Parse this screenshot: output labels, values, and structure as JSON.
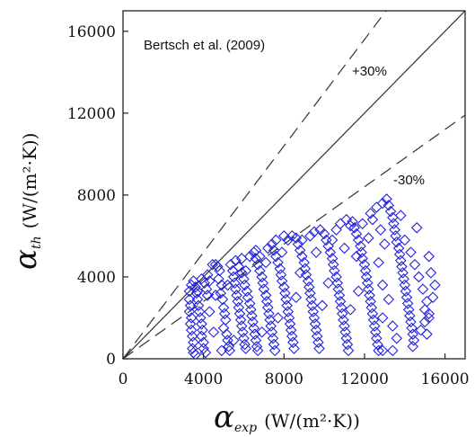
{
  "chart_data": {
    "type": "scatter",
    "title": "",
    "annotation": "Bertsch et al. (2009)",
    "xlabel": {
      "symbol": "α",
      "subscript": "exp",
      "unit": "(W/(m²·K))"
    },
    "ylabel": {
      "symbol": "α",
      "subscript": "th",
      "unit": "(W/(m²·K))"
    },
    "xlim": [
      0,
      17000
    ],
    "ylim": [
      0,
      17000
    ],
    "xticks": [
      0,
      4000,
      8000,
      12000,
      16000
    ],
    "yticks": [
      0,
      4000,
      8000,
      12000,
      16000
    ],
    "xtick_labels": [
      "0",
      "4000",
      "8000",
      "12000",
      "16000"
    ],
    "ytick_labels": [
      "0",
      "4000",
      "8000",
      "12000",
      "16000"
    ],
    "grid": false,
    "reference_lines": [
      {
        "label": "",
        "slope": 1.0,
        "style": "solid"
      },
      {
        "label": "+30%",
        "slope": 1.3,
        "style": "dashed"
      },
      {
        "label": "-30%",
        "slope": 0.7,
        "style": "dashed"
      }
    ],
    "marker": "diamond-open",
    "marker_color": "#2222dd",
    "series": [
      {
        "points": [
          [
            3300,
            3300
          ],
          [
            3300,
            2900
          ],
          [
            3350,
            2600
          ],
          [
            3300,
            2300
          ],
          [
            3400,
            2000
          ],
          [
            3350,
            1700
          ],
          [
            3400,
            1400
          ],
          [
            3450,
            1100
          ],
          [
            3500,
            800
          ],
          [
            3450,
            500
          ],
          [
            3500,
            300
          ],
          [
            3600,
            200
          ],
          [
            3400,
            3600
          ],
          [
            3500,
            3800
          ],
          [
            3600,
            3500
          ],
          [
            3650,
            3200
          ],
          [
            3700,
            2900
          ],
          [
            3750,
            2600
          ],
          [
            3800,
            2300
          ],
          [
            3850,
            2000
          ],
          [
            3900,
            1700
          ],
          [
            3950,
            1400
          ],
          [
            3900,
            1100
          ],
          [
            4000,
            800
          ],
          [
            4000,
            500
          ],
          [
            4100,
            300
          ],
          [
            4050,
            3700
          ],
          [
            4150,
            3400
          ],
          [
            4200,
            3100
          ],
          [
            4300,
            3800
          ],
          [
            4450,
            4600
          ],
          [
            4600,
            4600
          ],
          [
            4700,
            4500
          ],
          [
            4800,
            4300
          ],
          [
            4750,
            3900
          ],
          [
            4900,
            3600
          ],
          [
            4850,
            3200
          ],
          [
            4950,
            2900
          ],
          [
            5000,
            2500
          ],
          [
            5050,
            2200
          ],
          [
            5100,
            1900
          ],
          [
            5000,
            1500
          ],
          [
            5150,
            1200
          ],
          [
            5200,
            900
          ],
          [
            5250,
            600
          ],
          [
            5300,
            400
          ],
          [
            5350,
            4600
          ],
          [
            5450,
            4300
          ],
          [
            5500,
            4000
          ],
          [
            5550,
            3700
          ],
          [
            5600,
            3400
          ],
          [
            5650,
            3100
          ],
          [
            5700,
            2800
          ],
          [
            5750,
            2500
          ],
          [
            5800,
            2200
          ],
          [
            5850,
            1900
          ],
          [
            5900,
            1600
          ],
          [
            5950,
            1300
          ],
          [
            6000,
            1000
          ],
          [
            6050,
            700
          ],
          [
            6100,
            500
          ],
          [
            5600,
            4800
          ],
          [
            5750,
            4500
          ],
          [
            5900,
            4200
          ],
          [
            6000,
            3900
          ],
          [
            6050,
            3600
          ],
          [
            6150,
            3300
          ],
          [
            6200,
            3000
          ],
          [
            6300,
            2700
          ],
          [
            6350,
            2400
          ],
          [
            6400,
            2100
          ],
          [
            6450,
            1800
          ],
          [
            6500,
            1500
          ],
          [
            6550,
            1200
          ],
          [
            6600,
            900
          ],
          [
            6650,
            600
          ],
          [
            6700,
            400
          ],
          [
            6300,
            5000
          ],
          [
            6500,
            5200
          ],
          [
            6600,
            4900
          ],
          [
            6700,
            4600
          ],
          [
            6800,
            4300
          ],
          [
            6900,
            4000
          ],
          [
            6950,
            3700
          ],
          [
            7000,
            3400
          ],
          [
            7100,
            3100
          ],
          [
            7150,
            2800
          ],
          [
            7200,
            2500
          ],
          [
            7250,
            2200
          ],
          [
            7300,
            1900
          ],
          [
            7350,
            1600
          ],
          [
            7400,
            1300
          ],
          [
            7450,
            1000
          ],
          [
            7500,
            700
          ],
          [
            7550,
            400
          ],
          [
            7200,
            5400
          ],
          [
            7400,
            5600
          ],
          [
            7500,
            5300
          ],
          [
            7600,
            5000
          ],
          [
            7700,
            4700
          ],
          [
            7800,
            4400
          ],
          [
            7850,
            4100
          ],
          [
            7900,
            3800
          ],
          [
            8000,
            3500
          ],
          [
            8050,
            3200
          ],
          [
            8100,
            2900
          ],
          [
            8150,
            2600
          ],
          [
            8200,
            2300
          ],
          [
            8250,
            2000
          ],
          [
            8300,
            1700
          ],
          [
            8350,
            1400
          ],
          [
            8400,
            1100
          ],
          [
            8450,
            800
          ],
          [
            8500,
            500
          ],
          [
            8200,
            5800
          ],
          [
            8400,
            6000
          ],
          [
            8600,
            5900
          ],
          [
            8700,
            5600
          ],
          [
            8800,
            5300
          ],
          [
            8900,
            5000
          ],
          [
            9000,
            4700
          ],
          [
            9050,
            4400
          ],
          [
            9100,
            4100
          ],
          [
            9200,
            3800
          ],
          [
            9250,
            3500
          ],
          [
            9300,
            3200
          ],
          [
            9350,
            2900
          ],
          [
            9400,
            2600
          ],
          [
            9450,
            2300
          ],
          [
            9500,
            2000
          ],
          [
            9550,
            1700
          ],
          [
            9600,
            1400
          ],
          [
            9650,
            1100
          ],
          [
            9700,
            800
          ],
          [
            9750,
            500
          ],
          [
            9500,
            6200
          ],
          [
            9800,
            6300
          ],
          [
            10000,
            6100
          ],
          [
            10100,
            5800
          ],
          [
            10200,
            5500
          ],
          [
            10300,
            5200
          ],
          [
            10400,
            4900
          ],
          [
            10450,
            4600
          ],
          [
            10500,
            4300
          ],
          [
            10600,
            4000
          ],
          [
            10650,
            3700
          ],
          [
            10700,
            3400
          ],
          [
            10750,
            3100
          ],
          [
            10800,
            2800
          ],
          [
            10850,
            2500
          ],
          [
            10900,
            2200
          ],
          [
            10950,
            1900
          ],
          [
            11000,
            1600
          ],
          [
            11050,
            1300
          ],
          [
            11100,
            1000
          ],
          [
            11150,
            700
          ],
          [
            11200,
            400
          ],
          [
            10800,
            6600
          ],
          [
            11100,
            6800
          ],
          [
            11400,
            6700
          ],
          [
            11500,
            6400
          ],
          [
            11600,
            6100
          ],
          [
            11700,
            5800
          ],
          [
            11800,
            5500
          ],
          [
            11850,
            5200
          ],
          [
            11900,
            4900
          ],
          [
            12000,
            4600
          ],
          [
            12050,
            4300
          ],
          [
            12100,
            4000
          ],
          [
            12150,
            3700
          ],
          [
            12200,
            3400
          ],
          [
            12250,
            3100
          ],
          [
            12300,
            2800
          ],
          [
            12350,
            2500
          ],
          [
            12400,
            2200
          ],
          [
            12450,
            1900
          ],
          [
            12500,
            1600
          ],
          [
            12550,
            1300
          ],
          [
            12600,
            1000
          ],
          [
            12650,
            700
          ],
          [
            12700,
            400
          ],
          [
            12300,
            7100
          ],
          [
            12600,
            7400
          ],
          [
            12900,
            7600
          ],
          [
            13100,
            7800
          ],
          [
            13200,
            7500
          ],
          [
            13300,
            7200
          ],
          [
            13400,
            6900
          ],
          [
            13450,
            6600
          ],
          [
            13500,
            6300
          ],
          [
            13550,
            6000
          ],
          [
            13600,
            5700
          ],
          [
            13700,
            5400
          ],
          [
            13750,
            5100
          ],
          [
            13800,
            4800
          ],
          [
            13850,
            4500
          ],
          [
            13900,
            4200
          ],
          [
            13950,
            3900
          ],
          [
            14000,
            3600
          ],
          [
            14050,
            3300
          ],
          [
            14100,
            3000
          ],
          [
            14150,
            2700
          ],
          [
            14200,
            2400
          ],
          [
            14250,
            2100
          ],
          [
            14300,
            1800
          ],
          [
            14350,
            1500
          ],
          [
            14400,
            1200
          ],
          [
            14450,
            900
          ],
          [
            14000,
            5800
          ],
          [
            14300,
            5200
          ],
          [
            14500,
            4600
          ],
          [
            14700,
            4000
          ],
          [
            14900,
            3400
          ],
          [
            15100,
            2800
          ],
          [
            15200,
            2200
          ],
          [
            15000,
            1800
          ],
          [
            14800,
            1400
          ],
          [
            15300,
            4200
          ],
          [
            15500,
            3600
          ],
          [
            15400,
            3000
          ],
          [
            15200,
            5000
          ],
          [
            14600,
            6400
          ],
          [
            13800,
            7000
          ],
          [
            13400,
            400
          ],
          [
            12900,
            400
          ],
          [
            13600,
            1000
          ],
          [
            15100,
            1200
          ],
          [
            14400,
            600
          ],
          [
            15000,
            2400
          ],
          [
            15200,
            2000
          ],
          [
            8800,
            4200
          ],
          [
            9600,
            5200
          ],
          [
            10400,
            5800
          ],
          [
            11000,
            5400
          ],
          [
            11600,
            5000
          ],
          [
            12200,
            5900
          ],
          [
            12800,
            6300
          ],
          [
            13000,
            5600
          ],
          [
            12700,
            4700
          ],
          [
            12900,
            3600
          ],
          [
            13200,
            2900
          ],
          [
            12900,
            2000
          ],
          [
            13400,
            1600
          ],
          [
            11700,
            3300
          ],
          [
            11300,
            2400
          ],
          [
            10200,
            3700
          ],
          [
            9900,
            2600
          ],
          [
            8600,
            3000
          ],
          [
            7700,
            2000
          ],
          [
            6900,
            1300
          ],
          [
            5500,
            900
          ],
          [
            4500,
            1300
          ],
          [
            4300,
            2300
          ],
          [
            4600,
            3100
          ],
          [
            5200,
            3600
          ],
          [
            6100,
            4300
          ],
          [
            6800,
            5000
          ],
          [
            7600,
            5800
          ],
          [
            8000,
            6000
          ],
          [
            4900,
            400
          ],
          [
            3700,
            3300
          ],
          [
            3900,
            3900
          ],
          [
            4200,
            4100
          ],
          [
            5900,
            4900
          ],
          [
            6600,
            5300
          ],
          [
            7100,
            4700
          ],
          [
            7900,
            5200
          ],
          [
            8900,
            5800
          ],
          [
            9300,
            6000
          ],
          [
            10600,
            6300
          ],
          [
            11300,
            6500
          ],
          [
            11900,
            6600
          ],
          [
            12400,
            6800
          ]
        ]
      }
    ]
  }
}
